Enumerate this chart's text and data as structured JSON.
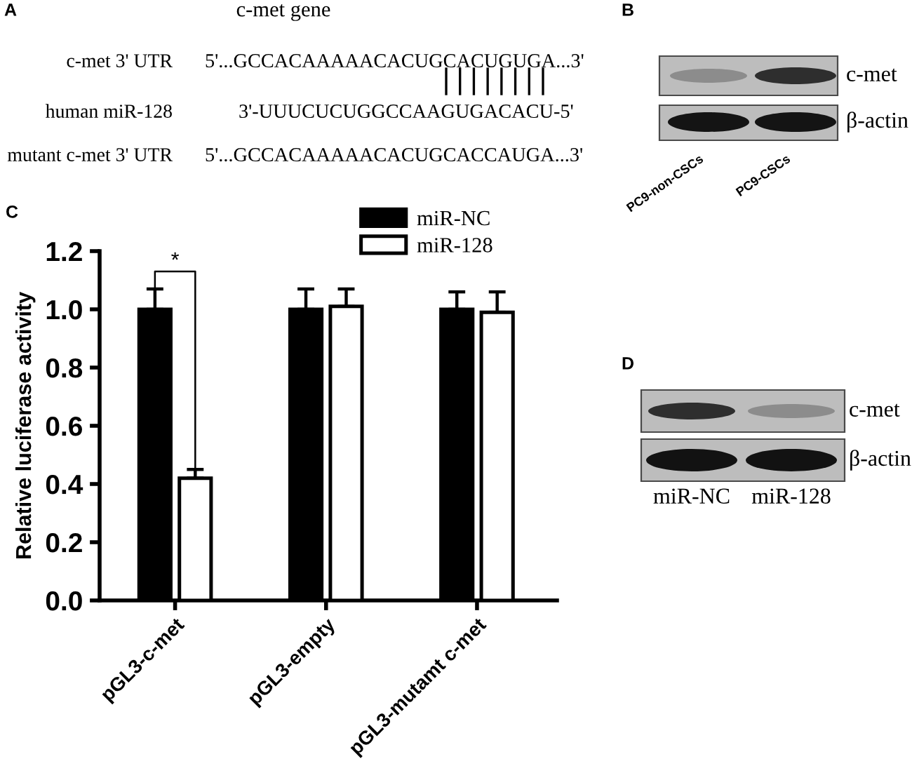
{
  "chart_data": [
    {
      "type": "other",
      "title": "c-met gene",
      "annotations": [
        "A",
        "c-met 3' UTR",
        "5'...GCCACAAAAACACUGCACUGUGA...3'",
        "human miR-128",
        "3'-UUUCUCUGGCCAAGUGACACU-5'",
        "mutant c-met 3' UTR",
        "5'...GCCACAAAAACACUGCACCAUGA...3'"
      ]
    },
    {
      "type": "other",
      "annotations": [
        "B",
        "c-met",
        "β-actin",
        "PC9-non-CSCs",
        "PC9-CSCs"
      ]
    },
    {
      "type": "bar",
      "categories": [
        "pGL3-c-met",
        "pGL3-empty",
        "pGL3-mutamt c-met"
      ],
      "series": [
        {
          "name": "miR-NC",
          "color": "#000000",
          "values": [
            1.0,
            1.0,
            1.0
          ],
          "errors": [
            [
              1.0,
              1.07
            ],
            [
              1.0,
              1.07
            ],
            [
              1.0,
              1.06
            ]
          ]
        },
        {
          "name": "miR-128",
          "color": "#ffffff",
          "values": [
            0.42,
            1.01,
            0.99
          ],
          "errors": [
            [
              0.42,
              0.45
            ],
            [
              1.01,
              1.07
            ],
            [
              0.99,
              1.06
            ]
          ]
        }
      ],
      "ylabel": "Relative luciferase activity",
      "ylim": [
        0,
        1.2
      ],
      "yticks": [
        {
          "value": 0,
          "label": "0.0"
        },
        {
          "value": 0.2,
          "label": "0.2"
        },
        {
          "value": 0.4,
          "label": "0.4"
        },
        {
          "value": 0.6,
          "label": "0.6"
        },
        {
          "value": 0.8,
          "label": "0.8"
        },
        {
          "value": 1.0,
          "label": "1.0"
        },
        {
          "value": 1.2,
          "label": "1.2"
        }
      ],
      "legend": "top right",
      "annotations": [
        "C",
        "*"
      ]
    },
    {
      "type": "other",
      "annotations": [
        "D",
        "c-met",
        "β-actin",
        "miR-NC",
        "miR-128"
      ]
    }
  ]
}
